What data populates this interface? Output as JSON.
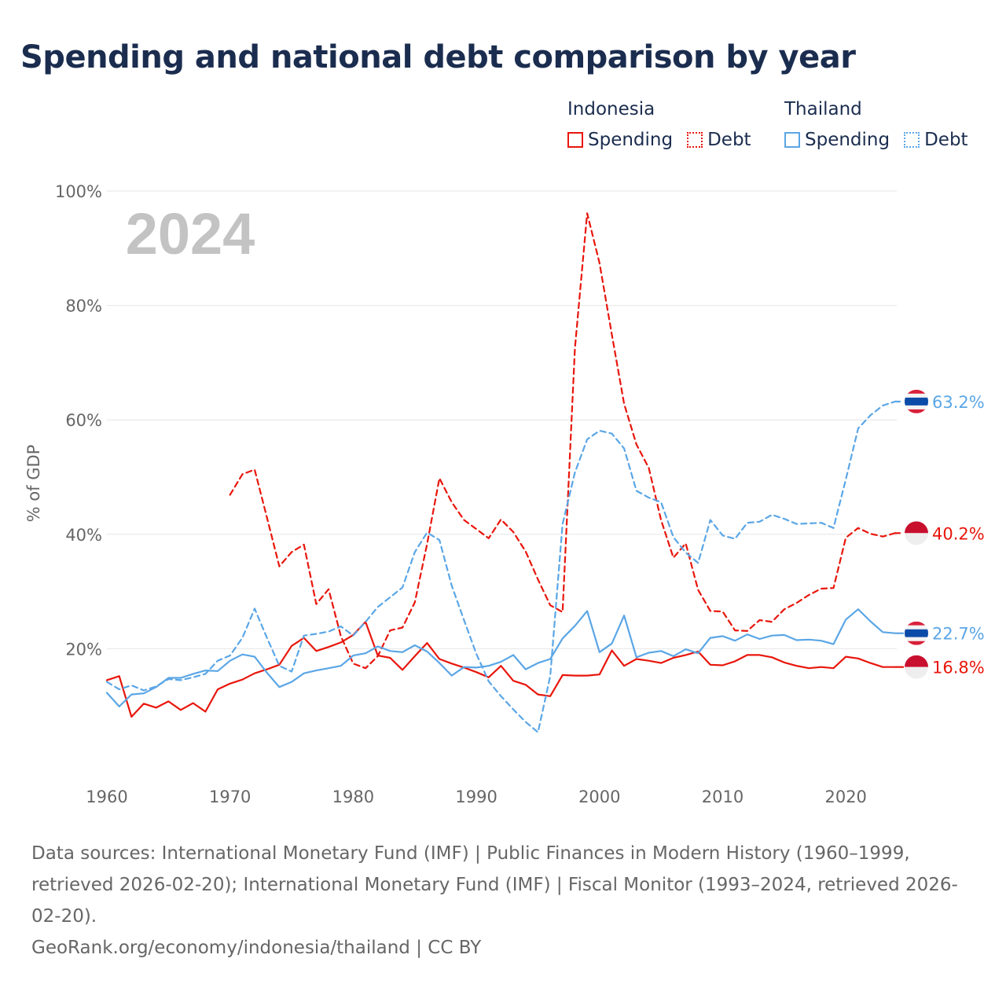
{
  "title": "Spending and national debt comparison by year",
  "legend": {
    "groups": [
      {
        "country": "Indonesia",
        "items": [
          {
            "label": "Spending",
            "style": "solid"
          },
          {
            "label": "Debt",
            "style": "dotted"
          }
        ],
        "color": "#e8160c"
      },
      {
        "country": "Thailand",
        "items": [
          {
            "label": "Spending",
            "style": "solid"
          },
          {
            "label": "Debt",
            "style": "dotted"
          }
        ],
        "color": "#5ba6e6"
      }
    ]
  },
  "chart_data": {
    "type": "line",
    "ylabel": "% of GDP",
    "xlabel": "",
    "ylim": [
      0,
      100
    ],
    "xlim": [
      1960,
      2025
    ],
    "y_ticks": [
      20,
      40,
      60,
      80,
      100
    ],
    "y_tick_labels": [
      "20%",
      "40%",
      "60%",
      "80%",
      "100%"
    ],
    "x_ticks": [
      1960,
      1970,
      1980,
      1990,
      2000,
      2010,
      2020
    ],
    "x_tick_labels": [
      "1960",
      "1970",
      "1980",
      "1990",
      "2000",
      "2010",
      "2020"
    ],
    "year_watermark": "2024",
    "series": [
      {
        "name": "Indonesia Spending",
        "country": "Indonesia",
        "measure": "Spending",
        "dashed": false,
        "color": "#e8160c",
        "end_label": "16.8%",
        "x": [
          1960,
          1961,
          1962,
          1963,
          1964,
          1965,
          1966,
          1967,
          1968,
          1969,
          1970,
          1971,
          1972,
          1973,
          1974,
          1975,
          1976,
          1977,
          1978,
          1979,
          1980,
          1981,
          1982,
          1983,
          1984,
          1985,
          1986,
          1987,
          1988,
          1989,
          1990,
          1991,
          1992,
          1993,
          1994,
          1995,
          1996,
          1997,
          1998,
          1999,
          2000,
          2001,
          2002,
          2003,
          2004,
          2005,
          2006,
          2007,
          2008,
          2009,
          2010,
          2011,
          2012,
          2013,
          2014,
          2015,
          2016,
          2017,
          2018,
          2019,
          2020,
          2021,
          2022,
          2023,
          2024
        ],
        "y": [
          14.5,
          15.2,
          8.1,
          10.4,
          9.7,
          10.8,
          9.3,
          10.5,
          9.0,
          12.9,
          13.9,
          14.6,
          15.7,
          16.4,
          17.2,
          20.5,
          21.9,
          19.6,
          20.3,
          21.1,
          22.4,
          24.7,
          18.8,
          18.4,
          16.3,
          18.7,
          21.0,
          18.2,
          17.4,
          16.7,
          15.9,
          15.0,
          17.0,
          14.4,
          13.7,
          12.0,
          11.7,
          15.4,
          15.3,
          15.3,
          15.5,
          19.7,
          17.0,
          18.2,
          17.9,
          17.5,
          18.4,
          18.9,
          19.5,
          17.2,
          17.1,
          17.8,
          18.9,
          18.9,
          18.5,
          17.6,
          17.0,
          16.6,
          16.8,
          16.6,
          18.6,
          18.3,
          17.5,
          16.8,
          16.8
        ]
      },
      {
        "name": "Indonesia Debt",
        "country": "Indonesia",
        "measure": "Debt",
        "dashed": true,
        "color": "#e8160c",
        "end_label": "40.2%",
        "x": [
          1970,
          1971,
          1972,
          1973,
          1974,
          1975,
          1976,
          1977,
          1978,
          1979,
          1980,
          1981,
          1982,
          1983,
          1984,
          1985,
          1986,
          1987,
          1988,
          1989,
          1990,
          1991,
          1992,
          1993,
          1994,
          1995,
          1996,
          1997,
          1998,
          1999,
          2000,
          2001,
          2002,
          2003,
          2004,
          2005,
          2006,
          2007,
          2008,
          2009,
          2010,
          2011,
          2012,
          2013,
          2014,
          2015,
          2016,
          2017,
          2018,
          2019,
          2020,
          2021,
          2022,
          2023,
          2024
        ],
        "y": [
          46.9,
          50.5,
          51.3,
          42.9,
          34.4,
          36.9,
          38.2,
          27.8,
          30.4,
          22.2,
          17.4,
          16.6,
          18.7,
          23.2,
          23.7,
          28.1,
          38.3,
          49.8,
          45.6,
          42.5,
          40.9,
          39.3,
          42.6,
          40.4,
          37.0,
          32.1,
          27.6,
          26.4,
          72.5,
          96.1,
          87.4,
          74.9,
          62.8,
          55.7,
          51.6,
          42.5,
          35.9,
          38.4,
          30.3,
          26.6,
          26.5,
          23.2,
          23.1,
          25.0,
          24.7,
          26.9,
          28.0,
          29.4,
          30.5,
          30.6,
          39.4,
          41.1,
          40.1,
          39.6,
          40.2
        ]
      },
      {
        "name": "Thailand Spending",
        "country": "Thailand",
        "measure": "Spending",
        "dashed": false,
        "color": "#5ba6e6",
        "end_label": "22.7%",
        "x": [
          1960,
          1961,
          1962,
          1963,
          1964,
          1965,
          1966,
          1967,
          1968,
          1969,
          1970,
          1971,
          1972,
          1973,
          1974,
          1975,
          1976,
          1977,
          1978,
          1979,
          1980,
          1981,
          1982,
          1983,
          1984,
          1985,
          1986,
          1987,
          1988,
          1989,
          1990,
          1991,
          1992,
          1993,
          1994,
          1995,
          1996,
          1997,
          1998,
          1999,
          2000,
          2001,
          2002,
          2003,
          2004,
          2005,
          2006,
          2007,
          2008,
          2009,
          2010,
          2011,
          2012,
          2013,
          2014,
          2015,
          2016,
          2017,
          2018,
          2019,
          2020,
          2021,
          2022,
          2023,
          2024
        ],
        "y": [
          12.3,
          9.9,
          12.0,
          12.2,
          13.3,
          14.9,
          14.9,
          15.6,
          16.2,
          16.1,
          17.9,
          19.0,
          18.6,
          15.8,
          13.3,
          14.2,
          15.7,
          16.2,
          16.6,
          17.0,
          18.8,
          19.2,
          20.4,
          19.6,
          19.4,
          20.6,
          19.5,
          17.5,
          15.3,
          16.8,
          16.7,
          17.0,
          17.7,
          18.9,
          16.4,
          17.5,
          18.2,
          21.8,
          24.0,
          26.6,
          19.4,
          20.9,
          25.8,
          18.5,
          19.3,
          19.6,
          18.7,
          19.9,
          19.2,
          21.9,
          22.2,
          21.4,
          22.5,
          21.7,
          22.3,
          22.4,
          21.5,
          21.6,
          21.4,
          20.8,
          25.1,
          26.9,
          24.8,
          22.9,
          22.7
        ]
      },
      {
        "name": "Thailand Debt",
        "country": "Thailand",
        "measure": "Debt",
        "dashed": true,
        "color": "#5ba6e6",
        "end_label": "63.2%",
        "x": [
          1960,
          1961,
          1962,
          1963,
          1964,
          1965,
          1966,
          1967,
          1968,
          1969,
          1970,
          1971,
          1972,
          1973,
          1974,
          1975,
          1976,
          1977,
          1978,
          1979,
          1980,
          1981,
          1982,
          1983,
          1984,
          1985,
          1986,
          1987,
          1988,
          1989,
          1990,
          1991,
          1992,
          1993,
          1994,
          1995,
          1996,
          1997,
          1998,
          1999,
          2000,
          2001,
          2002,
          2003,
          2004,
          2005,
          2006,
          2007,
          2008,
          2009,
          2010,
          2011,
          2012,
          2013,
          2014,
          2015,
          2016,
          2017,
          2018,
          2019,
          2020,
          2021,
          2022,
          2023,
          2024
        ],
        "y": [
          14.2,
          12.9,
          13.6,
          12.7,
          13.4,
          14.7,
          14.5,
          15.0,
          15.6,
          17.9,
          18.8,
          21.9,
          27.0,
          21.9,
          17.0,
          16.0,
          22.3,
          22.6,
          23.0,
          23.9,
          22.3,
          24.7,
          27.3,
          29.0,
          30.7,
          36.9,
          40.3,
          39.0,
          31.0,
          25.0,
          19.1,
          14.3,
          11.7,
          9.4,
          7.2,
          5.4,
          15.2,
          41.8,
          50.8,
          56.6,
          58.1,
          57.6,
          55.0,
          47.6,
          46.4,
          45.6,
          39.5,
          36.8,
          35.0,
          42.5,
          39.8,
          39.2,
          42.0,
          42.2,
          43.4,
          42.7,
          41.8,
          41.9,
          42.0,
          41.1,
          49.6,
          58.5,
          60.8,
          62.5,
          63.2
        ]
      }
    ]
  },
  "footer": {
    "sources": "Data sources: International Monetary Fund (IMF) | Public Finances in Modern History (1960–1999, retrieved 2026-02-20); International Monetary Fund (IMF) | Fiscal Monitor (1993–2024, retrieved 2026-02-20).",
    "attribution": "GeoRank.org/economy/indonesia/thailand | CC BY"
  }
}
